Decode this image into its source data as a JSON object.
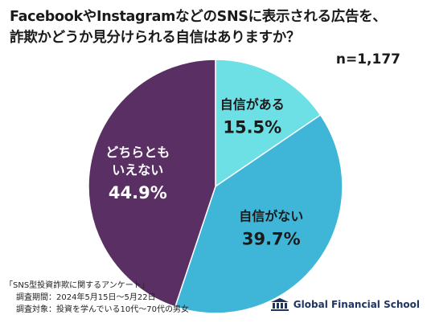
{
  "title": {
    "line1": "FacebookやInstagramなどのSNSに表示される広告を、",
    "line2": "詐欺かどうか見分けられる自信はありますか？"
  },
  "sample_size": "n=1,177",
  "chart_data": {
    "type": "pie",
    "title": "FacebookやInstagramなどのSNSに表示される広告を、詐欺かどうか見分けられる自信はありますか？",
    "slices": [
      {
        "label": [
          "自信がある"
        ],
        "value": 15.5,
        "value_label": "15.5%",
        "color": "#6de0e6",
        "text_color": "#1a1a1a"
      },
      {
        "label": [
          "自信がない"
        ],
        "value": 39.7,
        "value_label": "39.7%",
        "color": "#3fb6d8",
        "text_color": "#1a1a1a"
      },
      {
        "label": [
          "どちらとも",
          "いえない"
        ],
        "value": 44.9,
        "value_label": "44.9%",
        "color": "#5a2f63",
        "text_color": "#ffffff"
      }
    ]
  },
  "source": {
    "survey": "「SNS型投資詐欺に関するアンケート」",
    "period": "調査期間：2024年5月15日〜5月22日",
    "target": "調査対象：投資を学んでいる10代〜70代の男女"
  },
  "brand": {
    "name": "Global Financial School",
    "color": "#1f3560"
  }
}
